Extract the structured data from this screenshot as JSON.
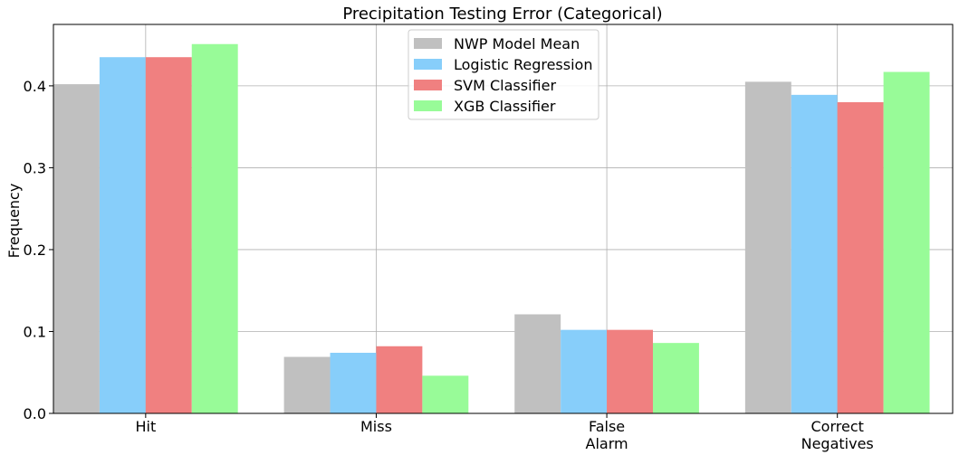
{
  "chart_data": {
    "type": "bar",
    "title": "Precipitation Testing Error (Categorical)",
    "xlabel": "",
    "ylabel": "Frequency",
    "categories": [
      [
        "Hit"
      ],
      [
        "Miss"
      ],
      [
        "False",
        "Alarm"
      ],
      [
        "Correct",
        "Negatives"
      ]
    ],
    "series": [
      {
        "name": "NWP Model Mean",
        "color": "#c0c0c0",
        "values": [
          0.402,
          0.069,
          0.121,
          0.405
        ]
      },
      {
        "name": "Logistic Regression",
        "color": "#87cefa",
        "values": [
          0.435,
          0.074,
          0.102,
          0.389
        ]
      },
      {
        "name": "SVM Classifier",
        "color": "#f08080",
        "values": [
          0.435,
          0.082,
          0.102,
          0.38
        ]
      },
      {
        "name": "XGB Classifier",
        "color": "#98fb98",
        "values": [
          0.451,
          0.046,
          0.086,
          0.417
        ]
      }
    ],
    "ylim": [
      0,
      0.475
    ],
    "yticks": [
      0.0,
      0.1,
      0.2,
      0.3,
      0.4
    ],
    "ytick_labels": [
      "0.0",
      "0.1",
      "0.2",
      "0.3",
      "0.4"
    ],
    "grid": true,
    "legend_position": "top-center"
  }
}
